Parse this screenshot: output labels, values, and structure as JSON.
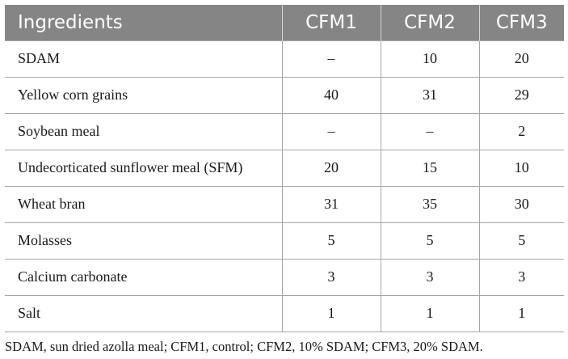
{
  "table": {
    "headers": [
      "Ingredients",
      "CFM1",
      "CFM2",
      "CFM3"
    ],
    "rows": [
      [
        "SDAM",
        "–",
        "10",
        "20"
      ],
      [
        "Yellow corn grains",
        "40",
        "31",
        "29"
      ],
      [
        "Soybean meal",
        "–",
        "–",
        "2"
      ],
      [
        "Undecorticated sunflower meal (SFM)",
        "20",
        "15",
        "10"
      ],
      [
        "Wheat bran",
        "31",
        "35",
        "30"
      ],
      [
        "Molasses",
        "5",
        "5",
        "5"
      ],
      [
        "Calcium carbonate",
        "3",
        "3",
        "3"
      ],
      [
        "Salt",
        "1",
        "1",
        "1"
      ]
    ]
  },
  "footnote": "SDAM, sun dried azolla meal; CFM1, control; CFM2, 10% SDAM; CFM3, 20% SDAM."
}
